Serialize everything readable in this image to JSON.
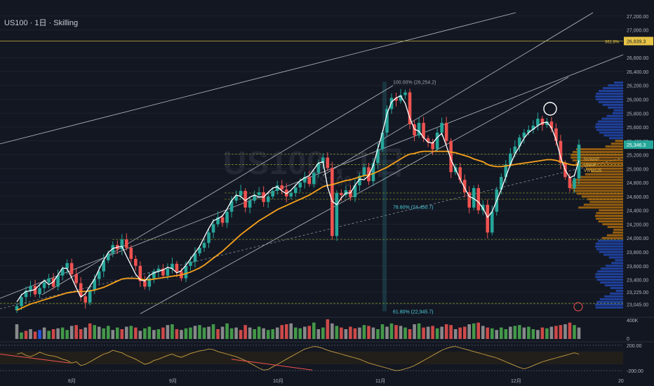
{
  "header": {
    "title": "US100 · 1日 · Skilling"
  },
  "watermark": {
    "symbol": "US100 , 1日",
    "subtitle": "US100"
  },
  "colors": {
    "background": "#131722",
    "up": "#26a69a",
    "down": "#ef5350",
    "sma": "#ffffff",
    "vwap": "#f7a21b",
    "volume_profile": "#ff9800",
    "volume_profile_blue": "#2962ff",
    "fib": "#4dd0e1"
  },
  "chart_data": {
    "type": "candlestick",
    "y_axis": {
      "ylim": [
        22900,
        27350
      ],
      "tick_labels": [
        "27,200.00",
        "27,000.00",
        "26,600.00",
        "26,400.00",
        "26,200.00",
        "26,000.00",
        "25,800.00",
        "25,600.00",
        "25,400.00",
        "25,200.00",
        "25,000.00",
        "24,800.00",
        "24,600.00",
        "24,400.00",
        "24,200.00",
        "24,000.00",
        "23,800.00",
        "23,600.00",
        "23,400.00",
        "23,225.00",
        "23,045.00"
      ],
      "tick_values": [
        27200,
        27000,
        26600,
        26400,
        26200,
        26000,
        25800,
        25600,
        25400,
        25200,
        25000,
        24800,
        24600,
        24400,
        24200,
        24000,
        23800,
        23600,
        23400,
        23225,
        23045
      ]
    },
    "x_axis": {
      "tick_labels": [
        "8月",
        "9月",
        "10月",
        "11月",
        "12月",
        "20"
      ]
    },
    "price_badges": [
      {
        "label": "361.8%",
        "value": "26,839.3",
        "price": 26839.3
      },
      {
        "label": "",
        "value": "25,346.3",
        "price": 25346.3
      }
    ],
    "fib_labels": [
      {
        "text": "100.00% (26,254.2)",
        "price": 26254.2
      },
      {
        "text": "78.60% (24,450.7)",
        "price": 24450.7
      },
      {
        "text": "61.80% (22,945.7)",
        "price": 22945.7
      }
    ],
    "level_labels": [
      "NVWAP",
      "VWAP",
      "VWMA25"
    ],
    "volume_axis": {
      "labels": [
        "400K",
        "0"
      ],
      "values": [
        400000,
        0
      ]
    },
    "osc_axis": {
      "labels": [
        "200.00",
        "-200.00"
      ],
      "values": [
        200,
        -200
      ]
    },
    "closes": [
      23020,
      23150,
      23240,
      23310,
      23190,
      23280,
      23360,
      23420,
      23300,
      23460,
      23560,
      23640,
      23480,
      23350,
      23160,
      23070,
      23250,
      23410,
      23520,
      23680,
      23780,
      23900,
      23840,
      23980,
      23860,
      23700,
      23600,
      23380,
      23300,
      23420,
      23520,
      23560,
      23460,
      23560,
      23630,
      23520,
      23420,
      23600,
      23660,
      23780,
      23860,
      23930,
      24080,
      24200,
      24300,
      24220,
      24380,
      24540,
      24610,
      24680,
      24440,
      24540,
      24620,
      24660,
      24520,
      24600,
      24680,
      24760,
      24700,
      24600,
      24650,
      24730,
      24800,
      24880,
      24780,
      24940,
      25080,
      25160,
      25010,
      24030,
      24650,
      24620,
      24690,
      24590,
      24760,
      24900,
      25020,
      24820,
      25080,
      25280,
      25520,
      25860,
      26020,
      25980,
      26060,
      26100,
      25640,
      25480,
      25660,
      25440,
      25380,
      25280,
      25520,
      25660,
      25400,
      24950,
      25020,
      24840,
      24660,
      24440,
      24720,
      24400,
      24480,
      24080,
      24380,
      24700,
      24880,
      25060,
      25220,
      25320,
      25450,
      25520,
      25560,
      25620,
      25720,
      25630,
      25680,
      25580,
      25400,
      25080,
      24880,
      24720,
      24860,
      25346
    ],
    "sma_values": [
      23080,
      23180,
      23230,
      23240,
      23260,
      23330,
      23390,
      23330,
      23370,
      23470,
      23570,
      23560,
      23430,
      23280,
      23150,
      23200,
      23310,
      23410,
      23550,
      23680,
      23790,
      23850,
      23870,
      23880,
      23740,
      23610,
      23480,
      23400,
      23380,
      23460,
      23500,
      23520,
      23540,
      23580,
      23560,
      23500,
      23530,
      23610,
      23700,
      23790,
      23880,
      24010,
      24140,
      24250,
      24280,
      24320,
      24420,
      24540,
      24620,
      24600,
      24540,
      24590,
      24620,
      24590,
      24590,
      24660,
      24720,
      24740,
      24680,
      24640,
      24690,
      24760,
      24830,
      24870,
      24900,
      24990,
      25080,
      25100,
      24740,
      24530,
      24480,
      24580,
      24650,
      24650,
      24760,
      24850,
      24840,
      24900,
      25050,
      25290,
      25520,
      25790,
      25960,
      26020,
      26050,
      25940,
      25730,
      25570,
      25540,
      25450,
      25380,
      25370,
      25450,
      25510,
      25330,
      25130,
      24990,
      24850,
      24720,
      24600,
      24570,
      24520,
      24430,
      24300,
      24380,
      24540,
      24700,
      24880,
      25060,
      25210,
      25320,
      25440,
      25520,
      25570,
      25620,
      25660,
      25670,
      25590,
      25420,
      25160,
      24980,
      24870,
      24900,
      25120
    ],
    "vwap_values": [
      22960,
      22990,
      23020,
      23050,
      23070,
      23090,
      23110,
      23130,
      23150,
      23170,
      23190,
      23210,
      23220,
      23230,
      23230,
      23230,
      23240,
      23250,
      23270,
      23290,
      23320,
      23350,
      23380,
      23410,
      23420,
      23420,
      23420,
      23410,
      23400,
      23400,
      23410,
      23420,
      23430,
      23440,
      23450,
      23460,
      23470,
      23490,
      23510,
      23540,
      23570,
      23610,
      23660,
      23710,
      23760,
      23810,
      23870,
      23930,
      23990,
      24050,
      24100,
      24150,
      24200,
      24250,
      24290,
      24330,
      24370,
      24410,
      24440,
      24470,
      24500,
      24530,
      24560,
      24590,
      24620,
      24660,
      24700,
      24740,
      24760,
      24770,
      24790,
      24810,
      24830,
      24840,
      24860,
      24880,
      24900,
      24910,
      24930,
      24960,
      24990,
      25020,
      25060,
      25100,
      25140,
      25180,
      25210,
      25220,
      25240,
      25250,
      25250,
      25250,
      25250,
      25250,
      25250,
      25240,
      25230,
      25210,
      25190,
      25170,
      25140,
      25120,
      25100,
      25060,
      25040,
      25030,
      25030,
      25040,
      25050,
      25060,
      25070,
      25080,
      25090,
      25100,
      25110,
      25120,
      25130,
      25130,
      25120,
      25100,
      25080,
      25060,
      25050,
      25060
    ],
    "horizontal_levels": [
      26839.3,
      25210,
      25060,
      24650,
      24560,
      23980,
      23060
    ],
    "volume": [
      90,
      40,
      50,
      60,
      45,
      55,
      70,
      50,
      60,
      65,
      70,
      55,
      80,
      85,
      60,
      70,
      95,
      85,
      75,
      65,
      80,
      55,
      70,
      60,
      75,
      80,
      70,
      50,
      65,
      75,
      55,
      60,
      70,
      85,
      90,
      60,
      55,
      65,
      70,
      80,
      85,
      70,
      75,
      90,
      60,
      75,
      95,
      65,
      70,
      55,
      85,
      70,
      60,
      75,
      65,
      55,
      60,
      70,
      85,
      90,
      95,
      70,
      65,
      75,
      80,
      100,
      60,
      70,
      120,
      95,
      80,
      70,
      60,
      75,
      65,
      70,
      85,
      80,
      70,
      60,
      90,
      75,
      95,
      85,
      80,
      70,
      60,
      90,
      95,
      70,
      75,
      80,
      65,
      75,
      90,
      85,
      60,
      70,
      75,
      90,
      95,
      100,
      80,
      70,
      65,
      55,
      70,
      60,
      75,
      80,
      85,
      70,
      75,
      60,
      55,
      70,
      65,
      75,
      80,
      85,
      90,
      100,
      85,
      70
    ],
    "volume_colors": [
      "r",
      "g",
      "r",
      "g",
      "r",
      "b",
      "g",
      "g",
      "r",
      "g",
      "g",
      "g",
      "r",
      "r",
      "r",
      "r",
      "r",
      "g",
      "g",
      "g",
      "g",
      "r",
      "g",
      "r",
      "r",
      "g",
      "r",
      "r",
      "g",
      "g",
      "g",
      "g",
      "r",
      "r",
      "g",
      "r",
      "r",
      "g",
      "g",
      "g",
      "g",
      "g",
      "g",
      "g",
      "r",
      "g",
      "g",
      "g",
      "r",
      "r",
      "r",
      "g",
      "g",
      "g",
      "r",
      "g",
      "g",
      "g",
      "r",
      "r",
      "r",
      "g",
      "g",
      "g",
      "r",
      "g",
      "g",
      "g",
      "r",
      "r",
      "g",
      "r",
      "g",
      "r",
      "r",
      "g",
      "g",
      "r",
      "g",
      "g",
      "g",
      "g",
      "g",
      "r",
      "g",
      "g",
      "r",
      "r",
      "g",
      "r",
      "r",
      "r",
      "g",
      "g",
      "r",
      "r",
      "g",
      "r",
      "r",
      "r",
      "g",
      "r",
      "g",
      "r",
      "g",
      "g",
      "g",
      "g",
      "g",
      "g",
      "g",
      "g",
      "g",
      "g",
      "g",
      "r",
      "g",
      "r",
      "r",
      "r",
      "r",
      "r",
      "g",
      "b"
    ],
    "oscillator": [
      60,
      80,
      40,
      20,
      50,
      90,
      60,
      40,
      30,
      10,
      -20,
      -40,
      -80,
      -60,
      -120,
      -100,
      -60,
      -20,
      20,
      60,
      80,
      120,
      100,
      80,
      40,
      10,
      -20,
      -60,
      -100,
      -80,
      -40,
      -20,
      10,
      40,
      60,
      30,
      10,
      40,
      70,
      90,
      110,
      120,
      140,
      130,
      100,
      80,
      60,
      40,
      20,
      -10,
      -40,
      -80,
      -120,
      -160,
      -190,
      -180,
      -140,
      -100,
      -60,
      -20,
      20,
      60,
      100,
      140,
      160,
      180,
      170,
      150,
      120,
      100,
      80,
      60,
      40,
      20,
      0,
      -20,
      -50,
      -80,
      -100,
      -120,
      -140,
      -160,
      -180,
      -200,
      -190,
      -170,
      -150,
      -120,
      -80,
      -40,
      0,
      40,
      80,
      120,
      150,
      170,
      180,
      160,
      140,
      120,
      100,
      80,
      60,
      40,
      20,
      0,
      -30,
      -60,
      -90,
      -120,
      -150,
      -170,
      -150,
      -120,
      -90,
      -60,
      -40,
      -20,
      0,
      20,
      40,
      60,
      80,
      60
    ]
  }
}
